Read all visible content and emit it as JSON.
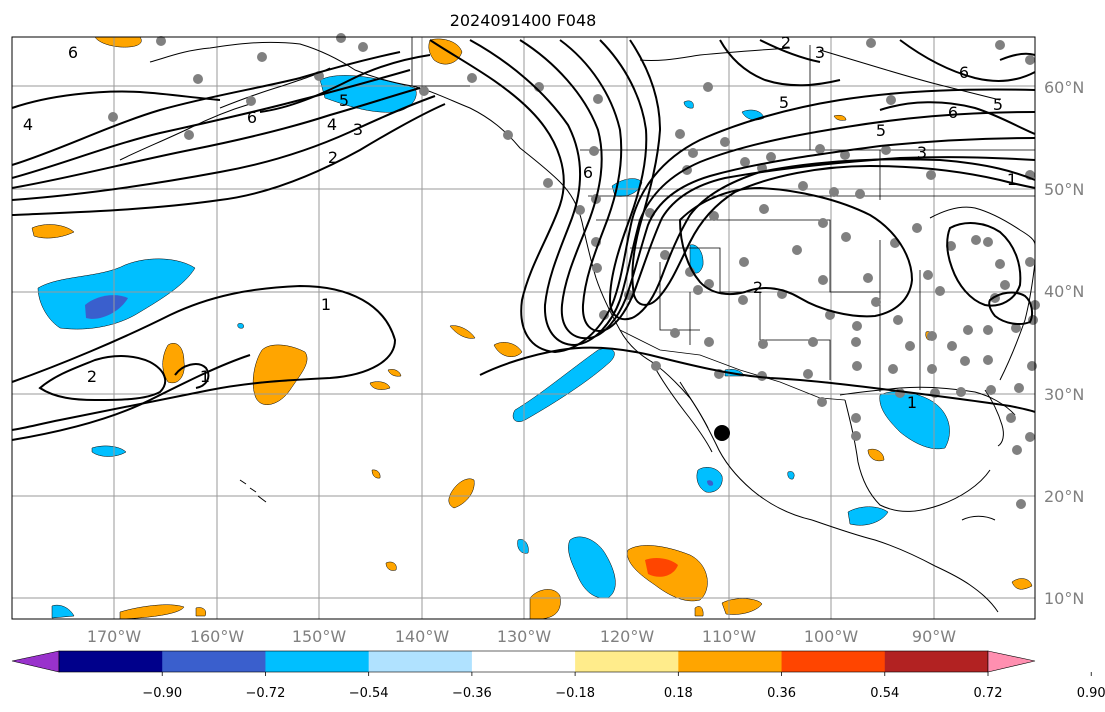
{
  "title": "2024091400 F048",
  "lat_labels": [
    "60°N",
    "50°N",
    "40°N",
    "30°N",
    "20°N",
    "10°N"
  ],
  "lon_labels": [
    "170°W",
    "160°W",
    "150°W",
    "140°W",
    "130°W",
    "120°W",
    "110°W",
    "100°W",
    "90°W"
  ],
  "colorbar": {
    "ticks": [
      "−0.90",
      "−0.72",
      "−0.54",
      "−0.36",
      "−0.18",
      "0.18",
      "0.36",
      "0.54",
      "0.72",
      "0.90"
    ],
    "colors": [
      "#9932cc",
      "#00008b",
      "#3a5fcd",
      "#00bfff",
      "#b0e2ff",
      "#ffffff",
      "#ffec8b",
      "#ffa500",
      "#ff4500",
      "#b22222",
      "#ff8fb0"
    ]
  },
  "contour_labels": [
    "6",
    "6",
    "5",
    "4",
    "3",
    "2",
    "1",
    "2",
    "1",
    "6",
    "5",
    "6",
    "5",
    "5",
    "3",
    "1",
    "2",
    "6",
    "4",
    "3",
    "2",
    "1"
  ],
  "shading_colors": {
    "deep_blue": "#3a5fcd",
    "blue": "#00bfff",
    "light_blue": "#b0e2ff",
    "orange": "#ffa500",
    "red_orange": "#ff4500"
  }
}
